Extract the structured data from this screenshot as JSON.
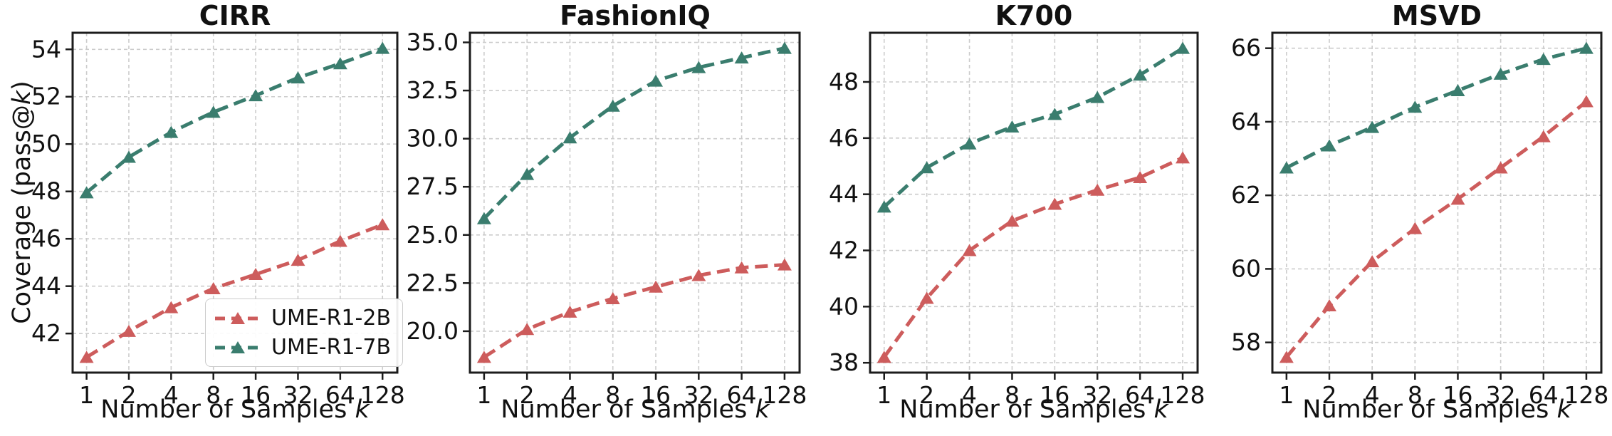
{
  "figure": {
    "ylabel": "Coverage (pass@k)",
    "xlabel": "Number of Samples k",
    "background": "#ffffff",
    "colors": {
      "series_2b": "#cd5c5c",
      "series_7b": "#3a7d6e",
      "grid": "#cccccc",
      "axis": "#1c1c1c",
      "text": "#111111"
    },
    "legend": {
      "position": "lower right of first panel",
      "entries": [
        {
          "label": "UME-R1-2B",
          "color": "#cd5c5c"
        },
        {
          "label": "UME-R1-7B",
          "color": "#3a7d6e"
        }
      ]
    }
  },
  "chart_data": [
    {
      "type": "line",
      "title": "CIRR",
      "xlabel": "Number of Samples k",
      "ylabel": "Coverage (pass@k)",
      "xscale": "log2",
      "grid": true,
      "x": [
        1,
        2,
        4,
        8,
        16,
        32,
        64,
        128
      ],
      "xtick_labels": [
        "1",
        "2",
        "4",
        "8",
        "16",
        "32",
        "64",
        "128"
      ],
      "yticks": [
        42,
        44,
        46,
        48,
        50,
        52,
        54
      ],
      "ytick_labels": [
        "42",
        "44",
        "46",
        "48",
        "50",
        "52",
        "54"
      ],
      "ylim": [
        40.35,
        54.7
      ],
      "show_legend": true,
      "series": [
        {
          "name": "UME-R1-2B",
          "color": "#cd5c5c",
          "linestyle": "dashed",
          "marker": "triangle-up",
          "values": [
            41.0,
            42.1,
            43.1,
            43.9,
            44.5,
            45.1,
            45.9,
            46.6
          ]
        },
        {
          "name": "UME-R1-7B",
          "color": "#3a7d6e",
          "linestyle": "dashed",
          "marker": "triangle-up",
          "values": [
            47.95,
            49.45,
            50.5,
            51.35,
            52.05,
            52.8,
            53.4,
            54.05
          ]
        }
      ]
    },
    {
      "type": "line",
      "title": "FashionIQ",
      "xlabel": "Number of Samples k",
      "xscale": "log2",
      "grid": true,
      "x": [
        1,
        2,
        4,
        8,
        16,
        32,
        64,
        128
      ],
      "xtick_labels": [
        "1",
        "2",
        "4",
        "8",
        "16",
        "32",
        "64",
        "128"
      ],
      "yticks": [
        20.0,
        22.5,
        25.0,
        27.5,
        30.0,
        32.5,
        35.0
      ],
      "ytick_labels": [
        "20.0",
        "22.5",
        "25.0",
        "27.5",
        "30.0",
        "32.5",
        "35.0"
      ],
      "ylim": [
        17.85,
        35.5
      ],
      "show_legend": false,
      "series": [
        {
          "name": "UME-R1-2B",
          "color": "#cd5c5c",
          "linestyle": "dashed",
          "marker": "triangle-up",
          "values": [
            18.65,
            20.1,
            21.0,
            21.7,
            22.3,
            22.9,
            23.3,
            23.45
          ]
        },
        {
          "name": "UME-R1-7B",
          "color": "#3a7d6e",
          "linestyle": "dashed",
          "marker": "triangle-up",
          "values": [
            25.85,
            28.15,
            30.05,
            31.7,
            33.0,
            33.7,
            34.2,
            34.7
          ]
        }
      ]
    },
    {
      "type": "line",
      "title": "K700",
      "xlabel": "Number of Samples k",
      "xscale": "log2",
      "grid": true,
      "x": [
        1,
        2,
        4,
        8,
        16,
        32,
        64,
        128
      ],
      "xtick_labels": [
        "1",
        "2",
        "4",
        "8",
        "16",
        "32",
        "64",
        "128"
      ],
      "yticks": [
        38,
        40,
        42,
        44,
        46,
        48
      ],
      "ytick_labels": [
        "38",
        "40",
        "42",
        "44",
        "46",
        "48"
      ],
      "ylim": [
        37.65,
        49.75
      ],
      "show_legend": false,
      "series": [
        {
          "name": "UME-R1-2B",
          "color": "#cd5c5c",
          "linestyle": "dashed",
          "marker": "triangle-up",
          "values": [
            38.2,
            40.3,
            42.0,
            43.05,
            43.65,
            44.15,
            44.6,
            45.3
          ]
        },
        {
          "name": "UME-R1-7B",
          "color": "#3a7d6e",
          "linestyle": "dashed",
          "marker": "triangle-up",
          "values": [
            43.55,
            44.95,
            45.8,
            46.4,
            46.85,
            47.45,
            48.25,
            49.2
          ]
        }
      ]
    },
    {
      "type": "line",
      "title": "MSVD",
      "xlabel": "Number of Samples k",
      "xscale": "log2",
      "grid": true,
      "x": [
        1,
        2,
        4,
        8,
        16,
        32,
        64,
        128
      ],
      "xtick_labels": [
        "1",
        "2",
        "4",
        "8",
        "16",
        "32",
        "64",
        "128"
      ],
      "yticks": [
        58,
        60,
        62,
        64,
        66
      ],
      "ytick_labels": [
        "58",
        "60",
        "62",
        "64",
        "66"
      ],
      "ylim": [
        57.18,
        66.42
      ],
      "show_legend": false,
      "series": [
        {
          "name": "UME-R1-2B",
          "color": "#cd5c5c",
          "linestyle": "dashed",
          "marker": "triangle-up",
          "values": [
            57.6,
            59.0,
            60.2,
            61.1,
            61.9,
            62.75,
            63.6,
            64.55
          ]
        },
        {
          "name": "UME-R1-7B",
          "color": "#3a7d6e",
          "linestyle": "dashed",
          "marker": "triangle-up",
          "values": [
            62.75,
            63.35,
            63.85,
            64.4,
            64.85,
            65.3,
            65.7,
            66.0
          ]
        }
      ]
    }
  ]
}
